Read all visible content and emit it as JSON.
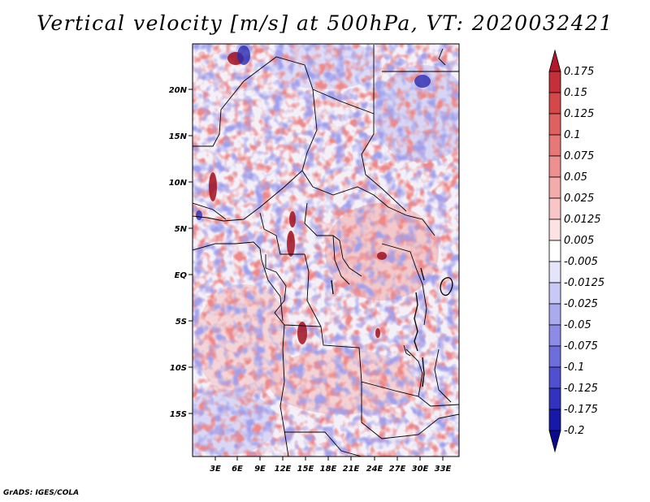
{
  "title": "Vertical velocity [m/s] at 500hPa, VT: 2020032421",
  "credit": "GrADS: IGES/COLA",
  "map": {
    "lon_ticks": [
      "3E",
      "6E",
      "9E",
      "12E",
      "15E",
      "18E",
      "21E",
      "24E",
      "27E",
      "30E",
      "33E"
    ],
    "lat_ticks": [
      "20N",
      "15N",
      "10N",
      "5N",
      "EQ",
      "5S",
      "10S",
      "15S"
    ]
  },
  "colorbar": {
    "labels": [
      "0.175",
      "0.15",
      "0.125",
      "0.1",
      "0.075",
      "0.05",
      "0.025",
      "0.0125",
      "0.005",
      "-0.005",
      "-0.0125",
      "-0.025",
      "-0.05",
      "-0.075",
      "-0.1",
      "-0.125",
      "-0.175",
      "-0.2"
    ],
    "colors": [
      "#b2182b",
      "#c4303a",
      "#d4484a",
      "#de6060",
      "#e67878",
      "#ed9090",
      "#f3abab",
      "#f8c6c6",
      "#fce2e2",
      "#ffffff",
      "#e4e4fa",
      "#c9c9f5",
      "#aaaaee",
      "#8c8ce6",
      "#6d6ddb",
      "#4f4fcf",
      "#3232bf",
      "#1818a8",
      "#0a0a8c"
    ]
  }
}
